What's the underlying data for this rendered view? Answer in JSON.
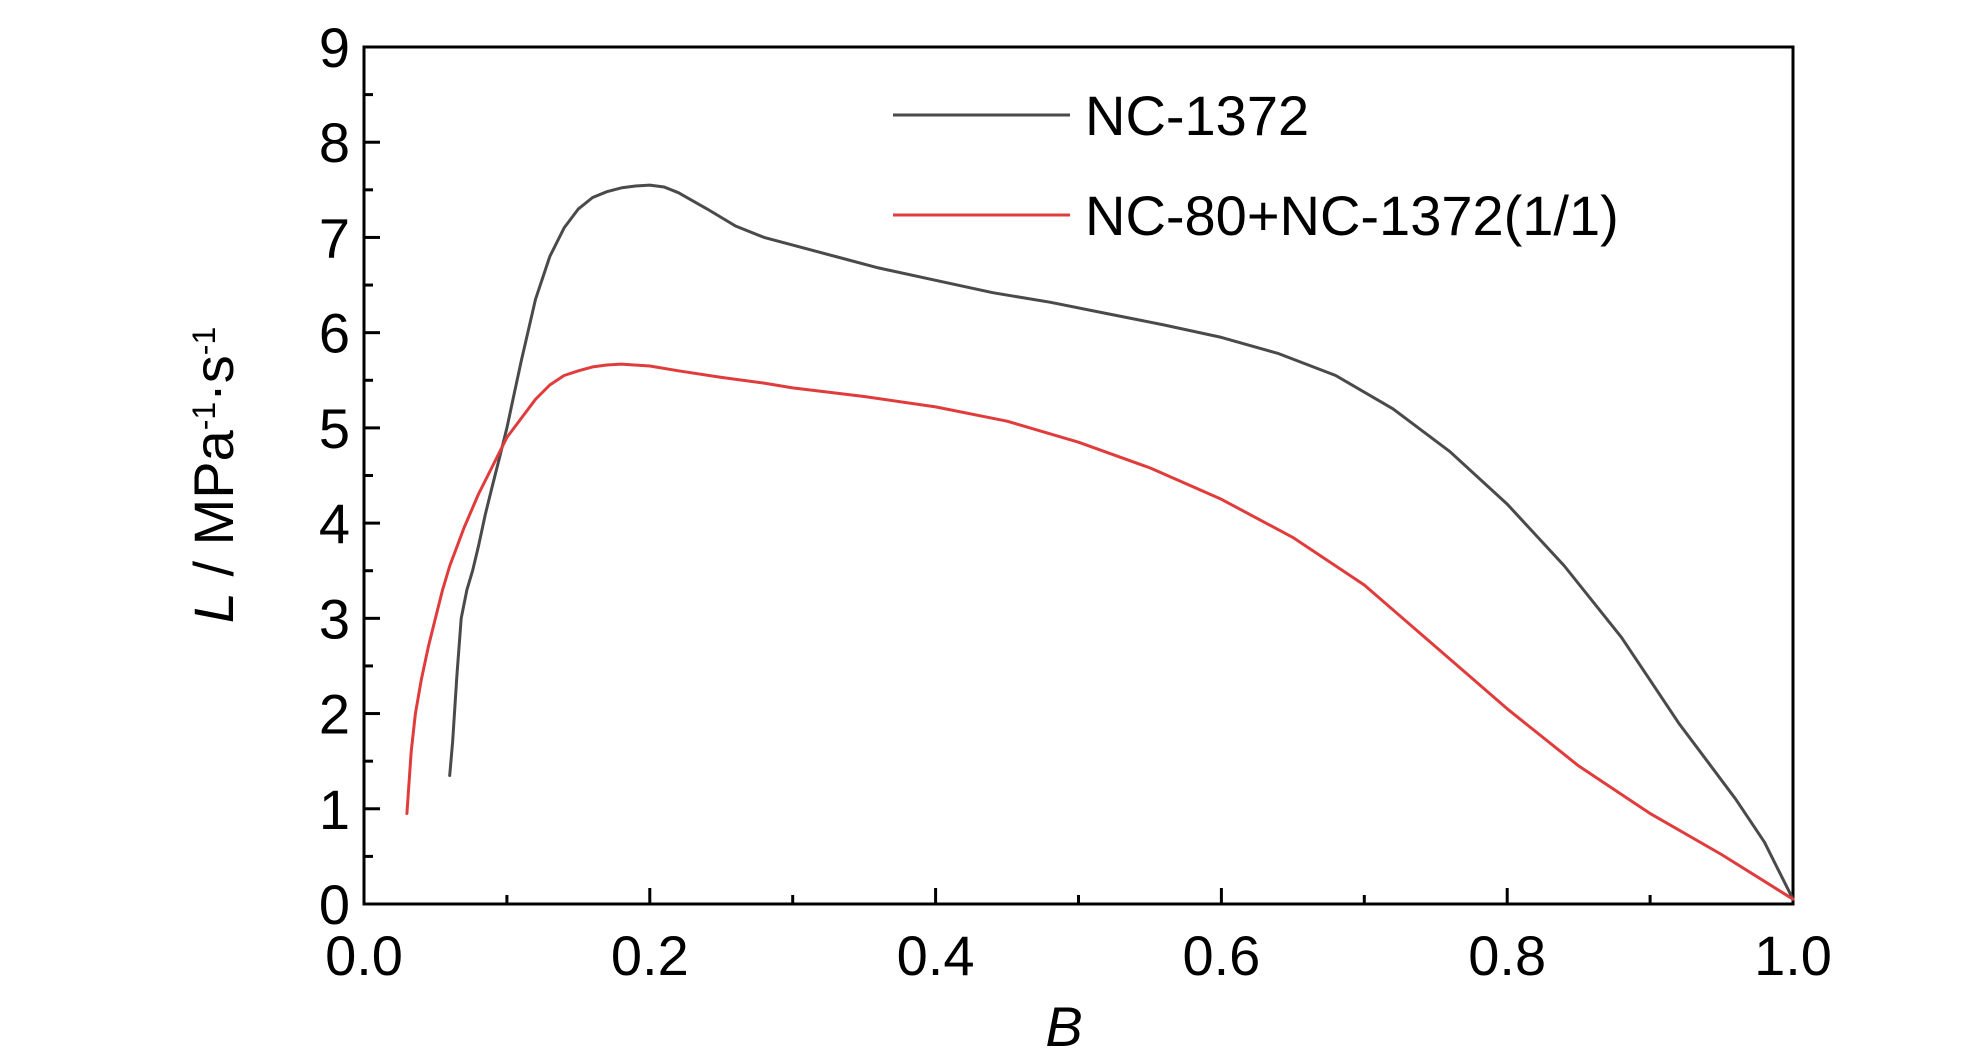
{
  "chart_data": {
    "type": "line",
    "xlabel": "B",
    "ylabel": {
      "main": "L / MPa",
      "exp1": "-1",
      "mid": "·s",
      "exp2": "-1"
    },
    "xlim": [
      0.0,
      1.0
    ],
    "ylim": [
      0,
      9
    ],
    "xticks": [
      "0.0",
      "0.2",
      "0.4",
      "0.6",
      "0.8",
      "1.0"
    ],
    "yticks": [
      "0",
      "1",
      "2",
      "3",
      "4",
      "5",
      "6",
      "7",
      "8",
      "9"
    ],
    "grid": false,
    "legend": "top-center",
    "series": [
      {
        "name": "NC-1372",
        "color": "#4a4a4a",
        "x": [
          0.06,
          0.062,
          0.065,
          0.068,
          0.072,
          0.076,
          0.08,
          0.085,
          0.09,
          0.095,
          0.1,
          0.105,
          0.11,
          0.12,
          0.13,
          0.14,
          0.15,
          0.16,
          0.17,
          0.18,
          0.19,
          0.2,
          0.21,
          0.22,
          0.24,
          0.26,
          0.28,
          0.3,
          0.33,
          0.36,
          0.4,
          0.44,
          0.48,
          0.52,
          0.56,
          0.6,
          0.64,
          0.68,
          0.72,
          0.76,
          0.8,
          0.84,
          0.88,
          0.9,
          0.92,
          0.94,
          0.96,
          0.98,
          0.99,
          1.0
        ],
        "y": [
          1.35,
          1.7,
          2.4,
          3.0,
          3.3,
          3.5,
          3.75,
          4.1,
          4.4,
          4.7,
          5.0,
          5.35,
          5.7,
          6.35,
          6.8,
          7.1,
          7.3,
          7.42,
          7.48,
          7.52,
          7.54,
          7.55,
          7.53,
          7.47,
          7.3,
          7.12,
          7.0,
          6.92,
          6.8,
          6.68,
          6.55,
          6.42,
          6.32,
          6.2,
          6.08,
          5.95,
          5.78,
          5.55,
          5.2,
          4.75,
          4.2,
          3.55,
          2.8,
          2.35,
          1.9,
          1.5,
          1.1,
          0.65,
          0.35,
          0.05
        ]
      },
      {
        "name": "NC-80+NC-1372(1/1)",
        "color": "#e03c3c",
        "x": [
          0.03,
          0.033,
          0.036,
          0.04,
          0.045,
          0.05,
          0.055,
          0.06,
          0.07,
          0.08,
          0.09,
          0.1,
          0.11,
          0.12,
          0.13,
          0.14,
          0.15,
          0.16,
          0.17,
          0.18,
          0.2,
          0.22,
          0.25,
          0.28,
          0.3,
          0.35,
          0.4,
          0.45,
          0.5,
          0.55,
          0.6,
          0.65,
          0.7,
          0.75,
          0.8,
          0.85,
          0.9,
          0.95,
          1.0
        ],
        "y": [
          0.95,
          1.6,
          2.0,
          2.35,
          2.7,
          3.0,
          3.3,
          3.55,
          3.95,
          4.3,
          4.6,
          4.9,
          5.1,
          5.3,
          5.45,
          5.55,
          5.6,
          5.64,
          5.66,
          5.67,
          5.65,
          5.6,
          5.53,
          5.47,
          5.42,
          5.33,
          5.22,
          5.07,
          4.85,
          4.58,
          4.25,
          3.85,
          3.35,
          2.7,
          2.05,
          1.45,
          0.95,
          0.52,
          0.05
        ]
      }
    ]
  }
}
